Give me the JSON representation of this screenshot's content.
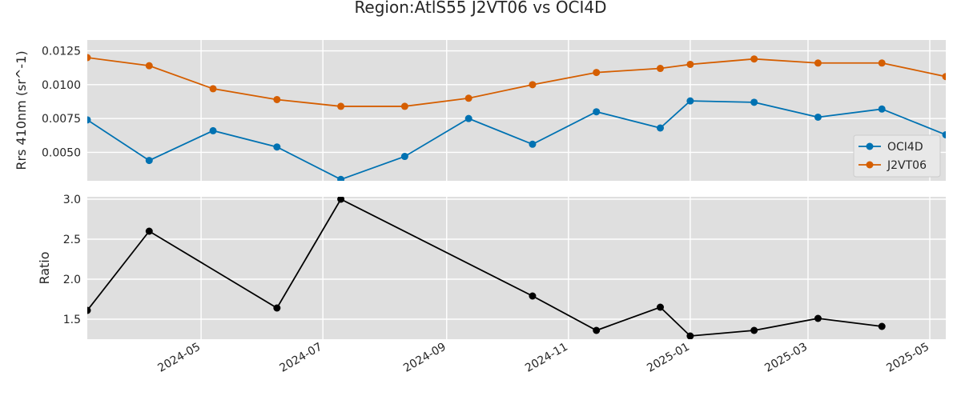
{
  "chart_data": {
    "title": "Region:AtlS55 J2VT06 vs OCI4D",
    "colors": {
      "oci4d": "#0072b2",
      "j2vt06": "#d55e00",
      "ratio": "#000000",
      "plot_bg": "#dfdfdf",
      "grid": "#ffffff"
    },
    "grid": true,
    "x_ticks": [
      "2024-05",
      "2024-07",
      "2024-09",
      "2024-11",
      "2025-01",
      "2025-03",
      "2025-05"
    ],
    "top": {
      "type": "line",
      "ylabel": "Rrs 410nm (sr^-1)",
      "ylim": [
        0.0029,
        0.0133
      ],
      "y_ticks": [
        "0.0050",
        "0.0075",
        "0.0100",
        "0.0125"
      ],
      "legend_position": "lower-right",
      "series": [
        {
          "name": "OCI4D",
          "x": [
            "2024-03-05",
            "2024-04-05",
            "2024-05-07",
            "2024-06-08",
            "2024-07-10",
            "2024-08-11",
            "2024-09-12",
            "2024-10-14",
            "2024-11-15",
            "2024-12-17",
            "2025-01-01",
            "2025-02-02",
            "2025-03-06",
            "2025-04-07",
            "2025-05-09"
          ],
          "y": [
            0.0074,
            0.0044,
            0.0066,
            0.0054,
            0.003,
            0.0047,
            0.0075,
            0.0056,
            0.008,
            0.0068,
            0.0088,
            0.0087,
            0.0076,
            0.0082,
            0.0063
          ]
        },
        {
          "name": "J2VT06",
          "x": [
            "2024-03-05",
            "2024-04-05",
            "2024-05-07",
            "2024-06-08",
            "2024-07-10",
            "2024-08-11",
            "2024-09-12",
            "2024-10-14",
            "2024-11-15",
            "2024-12-17",
            "2025-01-01",
            "2025-02-02",
            "2025-03-06",
            "2025-04-07",
            "2025-05-09"
          ],
          "y": [
            0.012,
            0.0114,
            0.0097,
            0.0089,
            0.0084,
            0.0084,
            0.009,
            0.01,
            0.0109,
            0.0112,
            0.0115,
            0.0119,
            0.0116,
            0.0116,
            0.0106
          ]
        }
      ]
    },
    "bottom": {
      "type": "line",
      "ylabel": "Ratio",
      "ylim": [
        1.25,
        3.03
      ],
      "y_ticks": [
        "1.5",
        "2.0",
        "2.5",
        "3.0"
      ],
      "series": [
        {
          "x": [
            "2024-03-05",
            "2024-04-05",
            "2024-06-08",
            "2024-07-10",
            "2024-10-14",
            "2024-11-15",
            "2024-12-17",
            "2025-01-01",
            "2025-02-02",
            "2025-03-06",
            "2025-04-07"
          ],
          "y": [
            1.61,
            2.6,
            1.64,
            3.0,
            1.79,
            1.36,
            1.65,
            1.29,
            1.36,
            1.51,
            1.41
          ]
        }
      ]
    }
  }
}
